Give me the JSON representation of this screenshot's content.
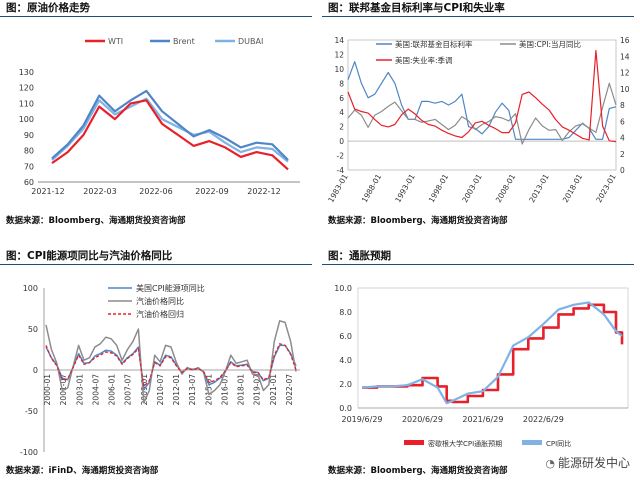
{
  "panels": [
    {
      "title": "图：原油价格走势",
      "source": "数据来源：Bloomberg、海通期货投资咨询部"
    },
    {
      "title": "图：联邦基金目标利率与CPI和失业率",
      "source": "数据来源：Bloomberg、海通期货投资咨询部"
    },
    {
      "title": "图：CPI能源项同比与汽油价格同比",
      "source": "数据来源：iFinD、海通期货投资咨询部"
    },
    {
      "title": "图：通胀预期",
      "source": "数据来源：Bloomberg、海通期货投资咨询部"
    }
  ],
  "watermark": "能源研发中心",
  "colors": {
    "red": "#e8202a",
    "blue": "#4f86c6",
    "lightblue": "#7fb2e5",
    "gray": "#8c8c8c",
    "title_rule": "#1f4e79"
  },
  "chart_data": [
    {
      "type": "line",
      "title": "",
      "legend_position": "top-center",
      "ylim": [
        60,
        130
      ],
      "yticks": [
        "60",
        "70",
        "80",
        "90",
        "100",
        "110",
        "120",
        "130"
      ],
      "xticks": [
        "2021-12",
        "2022-03",
        "2022-06",
        "2022-09",
        "2022-12"
      ],
      "x": [
        "2021-12",
        "2022-01",
        "2022-02",
        "2022-03",
        "2022-04",
        "2022-05",
        "2022-06",
        "2022-07",
        "2022-08",
        "2022-09",
        "2022-10",
        "2022-11",
        "2022-12",
        "2023-01",
        "2023-02",
        "2023-03"
      ],
      "series": [
        {
          "name": "WTI",
          "color": "#e8202a",
          "values": [
            72,
            79,
            90,
            108,
            100,
            110,
            112,
            97,
            90,
            83,
            86,
            82,
            76,
            79,
            77,
            68
          ]
        },
        {
          "name": "Brent",
          "color": "#4f86c6",
          "values": [
            75,
            84,
            96,
            115,
            105,
            112,
            118,
            105,
            97,
            89,
            93,
            88,
            82,
            85,
            84,
            74
          ]
        },
        {
          "name": "DUBAI",
          "color": "#7fb2e5",
          "values": [
            74,
            83,
            94,
            112,
            103,
            108,
            113,
            100,
            95,
            90,
            92,
            85,
            79,
            82,
            81,
            73
          ]
        }
      ]
    },
    {
      "type": "line",
      "title": "",
      "legend_position": "top",
      "ylim_left": [
        -4,
        14
      ],
      "yticks_left": [
        "-4",
        "-2",
        "0",
        "2",
        "4",
        "6",
        "8",
        "10",
        "12",
        "14"
      ],
      "ylim_right": [
        0,
        16
      ],
      "yticks_right": [
        "0",
        "2",
        "4",
        "6",
        "8",
        "10",
        "12",
        "14",
        "16"
      ],
      "xticks": [
        "1983-01",
        "1988-01",
        "1993-01",
        "1998-01",
        "2003-01",
        "2008-01",
        "2013-01",
        "2018-01",
        "2023-01"
      ],
      "x": [
        1983,
        1984,
        1985,
        1986,
        1987,
        1988,
        1989,
        1990,
        1991,
        1992,
        1993,
        1994,
        1995,
        1996,
        1997,
        1998,
        1999,
        2000,
        2001,
        2002,
        2003,
        2004,
        2005,
        2006,
        2007,
        2008,
        2009,
        2010,
        2011,
        2012,
        2013,
        2014,
        2015,
        2016,
        2017,
        2018,
        2019,
        2020,
        2021,
        2022,
        2023
      ],
      "series": [
        {
          "name": "美国:联邦基金目标利率",
          "axis": "left",
          "color": "#4f86c6",
          "values": [
            8.5,
            11,
            8,
            6,
            6.5,
            8,
            9.5,
            8,
            5,
            3,
            3,
            5.5,
            5.5,
            5.25,
            5.5,
            5,
            5.5,
            6.5,
            2,
            1.75,
            1,
            2,
            4,
            5.25,
            4.25,
            0.25,
            0.25,
            0.25,
            0.25,
            0.25,
            0.25,
            0.25,
            0.25,
            0.5,
            1.5,
            2.5,
            1.75,
            0.25,
            0.25,
            4.5,
            4.75
          ]
        },
        {
          "name": "美国:CPI:当月同比",
          "axis": "left",
          "color": "#8c8c8c",
          "values": [
            3.2,
            4.3,
            3.6,
            1.9,
            3.6,
            4.1,
            4.8,
            5.4,
            4.2,
            3,
            3,
            2.6,
            2.8,
            3,
            2.3,
            1.6,
            2.2,
            3.4,
            2.8,
            1.6,
            2.3,
            2.7,
            3.4,
            3.2,
            2.8,
            3.8,
            -0.4,
            1.6,
            3.2,
            2.1,
            1.5,
            1.6,
            0.1,
            1.3,
            2.1,
            2.4,
            1.8,
            1.2,
            4.7,
            8,
            5
          ]
        },
        {
          "name": "美国:失业率:季调",
          "axis": "right",
          "color": "#e8202a",
          "values": [
            9.6,
            7.5,
            7.2,
            7,
            6.2,
            5.5,
            5.3,
            5.6,
            6.8,
            7.5,
            6.9,
            6.1,
            5.6,
            5.4,
            4.9,
            4.5,
            4.2,
            4,
            4.7,
            5.8,
            6,
            5.5,
            5.1,
            4.6,
            4.6,
            5.8,
            9.3,
            9.6,
            8.9,
            8.1,
            7.4,
            6.2,
            5.3,
            4.9,
            4.4,
            3.9,
            3.7,
            14.7,
            5.4,
            3.6,
            3.5
          ]
        }
      ]
    },
    {
      "type": "line",
      "title": "",
      "legend_position": "top",
      "ylim": [
        -100,
        100
      ],
      "yticks": [
        "-100",
        "-50",
        "0",
        "50",
        "100"
      ],
      "xticks": [
        "2000-01",
        "2001-07",
        "2003-01",
        "2004-07",
        "2006-01",
        "2007-07",
        "2009-01",
        "2010-07",
        "2012-01",
        "2013-07",
        "2015-01",
        "2016-07",
        "2018-01",
        "2019-07",
        "2021-01",
        "2022-07"
      ],
      "x": [
        2000,
        2000.5,
        2001,
        2001.5,
        2002,
        2002.5,
        2003,
        2003.5,
        2004,
        2004.5,
        2005,
        2005.5,
        2006,
        2006.5,
        2007,
        2007.5,
        2008,
        2008.5,
        2009,
        2009.5,
        2010,
        2010.5,
        2011,
        2011.5,
        2012,
        2012.5,
        2013,
        2013.5,
        2014,
        2014.5,
        2015,
        2015.5,
        2016,
        2016.5,
        2017,
        2017.5,
        2018,
        2018.5,
        2019,
        2019.5,
        2020,
        2020.5,
        2021,
        2021.5,
        2022,
        2022.5,
        2023
      ],
      "series": [
        {
          "name": "美国CPI能源项同比",
          "color": "#4f86c6",
          "values": [
            28,
            15,
            6,
            -10,
            -12,
            4,
            20,
            8,
            9,
            17,
            20,
            24,
            23,
            18,
            8,
            15,
            20,
            28,
            -24,
            -15,
            10,
            6,
            18,
            16,
            6,
            -3,
            2,
            1,
            2,
            -2,
            -18,
            -15,
            -10,
            -2,
            10,
            5,
            6,
            7,
            -2,
            -3,
            -13,
            -10,
            16,
            30,
            30,
            20,
            5
          ]
        },
        {
          "name": "汽油价格同比",
          "color": "#8c8c8c",
          "values": [
            55,
            25,
            8,
            -25,
            -22,
            5,
            30,
            12,
            15,
            28,
            32,
            40,
            38,
            30,
            12,
            25,
            35,
            50,
            -40,
            -25,
            18,
            10,
            30,
            28,
            9,
            -5,
            3,
            0,
            3,
            -3,
            -30,
            -25,
            -18,
            -2,
            18,
            8,
            10,
            12,
            -5,
            -6,
            -25,
            -18,
            35,
            60,
            58,
            35,
            -2
          ]
        },
        {
          "name": "汽油价格回归",
          "color": "#e8202a",
          "dashed": true,
          "values": [
            30,
            14,
            5,
            -12,
            -11,
            3,
            18,
            7,
            9,
            15,
            18,
            22,
            21,
            17,
            7,
            14,
            19,
            26,
            -20,
            -13,
            9,
            5,
            16,
            15,
            5,
            -3,
            2,
            0,
            2,
            -2,
            -15,
            -13,
            -9,
            -1,
            9,
            4,
            5,
            6,
            -3,
            -3,
            -12,
            -9,
            18,
            32,
            30,
            19,
            0
          ]
        }
      ]
    },
    {
      "type": "line",
      "title": "",
      "legend_position": "bottom",
      "ylim": [
        0,
        10
      ],
      "yticks": [
        "0.0",
        "2.0",
        "4.0",
        "6.0",
        "8.0",
        "10.0"
      ],
      "xticks": [
        "2019/6/29",
        "2020/6/29",
        "2021/6/29",
        "2022/6/29"
      ],
      "x": [
        2019.0,
        2019.25,
        2019.5,
        2019.75,
        2020.0,
        2020.25,
        2020.4,
        2020.5,
        2020.75,
        2021.0,
        2021.25,
        2021.5,
        2021.75,
        2022.0,
        2022.25,
        2022.5,
        2022.75,
        2023.0,
        2023.2,
        2023.3
      ],
      "series": [
        {
          "name": "密歇根大学CPI通胀预期",
          "color": "#e8202a",
          "values": [
            1.7,
            1.8,
            1.8,
            1.9,
            2.5,
            1.8,
            0.6,
            0.5,
            1.0,
            1.5,
            2.8,
            4.9,
            5.8,
            6.7,
            7.8,
            8.3,
            8.6,
            8.0,
            6.3,
            5.3
          ]
        },
        {
          "name": "CPI同比",
          "color": "#7fb2e5",
          "values": [
            1.7,
            1.8,
            1.8,
            1.9,
            2.4,
            1.7,
            0.4,
            0.6,
            1.2,
            1.4,
            2.6,
            5.2,
            5.9,
            7.0,
            8.2,
            8.6,
            8.8,
            7.8,
            6.4,
            6.0
          ]
        }
      ]
    }
  ]
}
